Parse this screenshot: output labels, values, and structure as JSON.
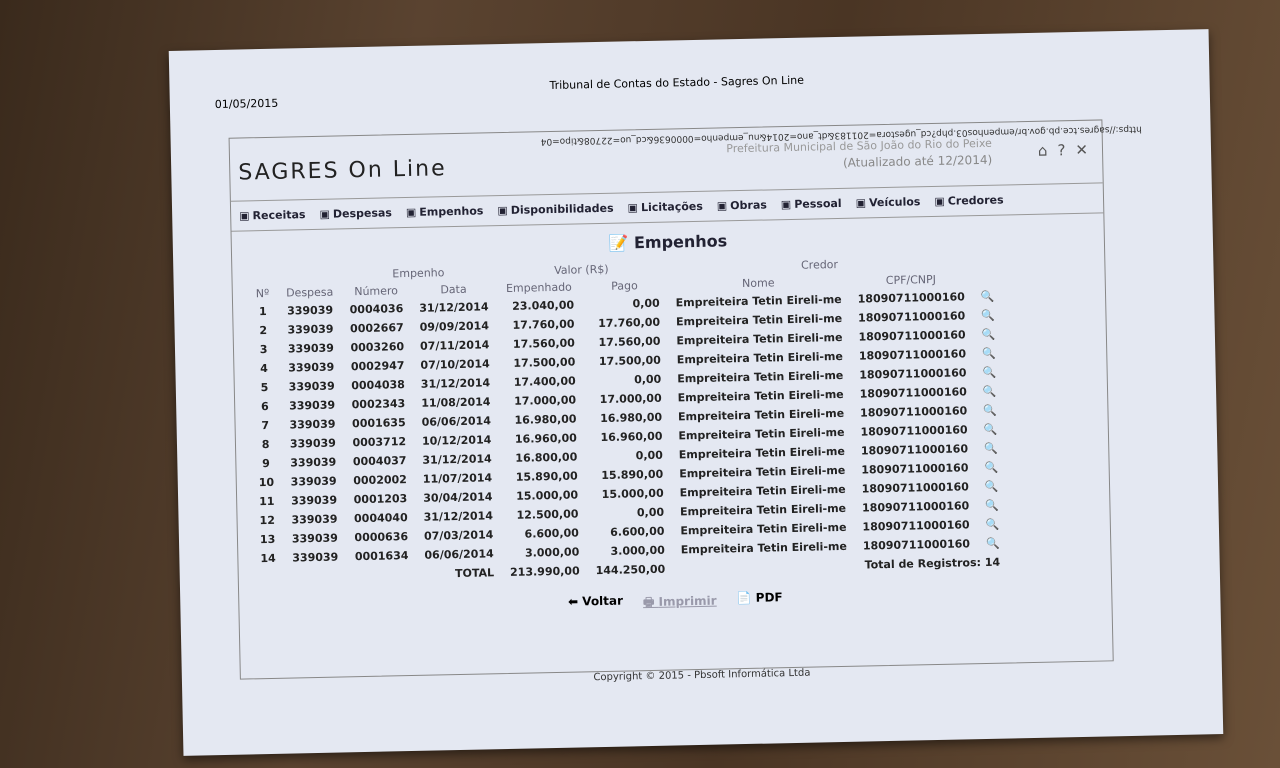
{
  "print_header": {
    "date": "01/05/2015",
    "title": "Tribunal de Contas do Estado - Sagres On Line"
  },
  "app": {
    "logo": "SAGRES On Line",
    "url": "https://sagres.tce.pb.gov.br/empenhos03.php?cd_ugestora=201183&dt_ano=2014&nu_empenho=0000636&cd_uo=22708&tipo=04",
    "prefeitura": "Prefeitura Municipal de São João do Rio do Peixe",
    "updated": "(Atualizado até 12/2014)"
  },
  "nav": [
    "Receitas",
    "Despesas",
    "Empenhos",
    "Disponibilidades",
    "Licitações",
    "Obras",
    "Pessoal",
    "Veículos",
    "Credores"
  ],
  "page_title": "Empenhos",
  "table": {
    "group_headers": {
      "empenho": "Empenho",
      "valor": "Valor (R$)",
      "credor": "Credor"
    },
    "columns": [
      "Nº",
      "Despesa",
      "Número",
      "Data",
      "Empenhado",
      "Pago",
      "Nome",
      "CPF/CNPJ"
    ],
    "rows": [
      [
        "1",
        "339039",
        "0004036",
        "31/12/2014",
        "23.040,00",
        "0,00",
        "Empreiteira Tetin Eireli-me",
        "18090711000160"
      ],
      [
        "2",
        "339039",
        "0002667",
        "09/09/2014",
        "17.760,00",
        "17.760,00",
        "Empreiteira Tetin Eireli-me",
        "18090711000160"
      ],
      [
        "3",
        "339039",
        "0003260",
        "07/11/2014",
        "17.560,00",
        "17.560,00",
        "Empreiteira Tetin Eireli-me",
        "18090711000160"
      ],
      [
        "4",
        "339039",
        "0002947",
        "07/10/2014",
        "17.500,00",
        "17.500,00",
        "Empreiteira Tetin Eireli-me",
        "18090711000160"
      ],
      [
        "5",
        "339039",
        "0004038",
        "31/12/2014",
        "17.400,00",
        "0,00",
        "Empreiteira Tetin Eireli-me",
        "18090711000160"
      ],
      [
        "6",
        "339039",
        "0002343",
        "11/08/2014",
        "17.000,00",
        "17.000,00",
        "Empreiteira Tetin Eireli-me",
        "18090711000160"
      ],
      [
        "7",
        "339039",
        "0001635",
        "06/06/2014",
        "16.980,00",
        "16.980,00",
        "Empreiteira Tetin Eireli-me",
        "18090711000160"
      ],
      [
        "8",
        "339039",
        "0003712",
        "10/12/2014",
        "16.960,00",
        "16.960,00",
        "Empreiteira Tetin Eireli-me",
        "18090711000160"
      ],
      [
        "9",
        "339039",
        "0004037",
        "31/12/2014",
        "16.800,00",
        "0,00",
        "Empreiteira Tetin Eireli-me",
        "18090711000160"
      ],
      [
        "10",
        "339039",
        "0002002",
        "11/07/2014",
        "15.890,00",
        "15.890,00",
        "Empreiteira Tetin Eireli-me",
        "18090711000160"
      ],
      [
        "11",
        "339039",
        "0001203",
        "30/04/2014",
        "15.000,00",
        "15.000,00",
        "Empreiteira Tetin Eireli-me",
        "18090711000160"
      ],
      [
        "12",
        "339039",
        "0004040",
        "31/12/2014",
        "12.500,00",
        "0,00",
        "Empreiteira Tetin Eireli-me",
        "18090711000160"
      ],
      [
        "13",
        "339039",
        "0000636",
        "07/03/2014",
        "6.600,00",
        "6.600,00",
        "Empreiteira Tetin Eireli-me",
        "18090711000160"
      ],
      [
        "14",
        "339039",
        "0001634",
        "06/06/2014",
        "3.000,00",
        "3.000,00",
        "Empreiteira Tetin Eireli-me",
        "18090711000160"
      ]
    ],
    "total_label": "TOTAL",
    "total_empenhado": "213.990,00",
    "total_pago": "144.250,00",
    "records_label": "Total de Registros:",
    "records": "14"
  },
  "footer": {
    "voltar": "Voltar",
    "imprimir": "Imprimir",
    "pdf": "PDF",
    "copyright": "Copyright © 2015 - Pbsoft Informática Ltda"
  }
}
